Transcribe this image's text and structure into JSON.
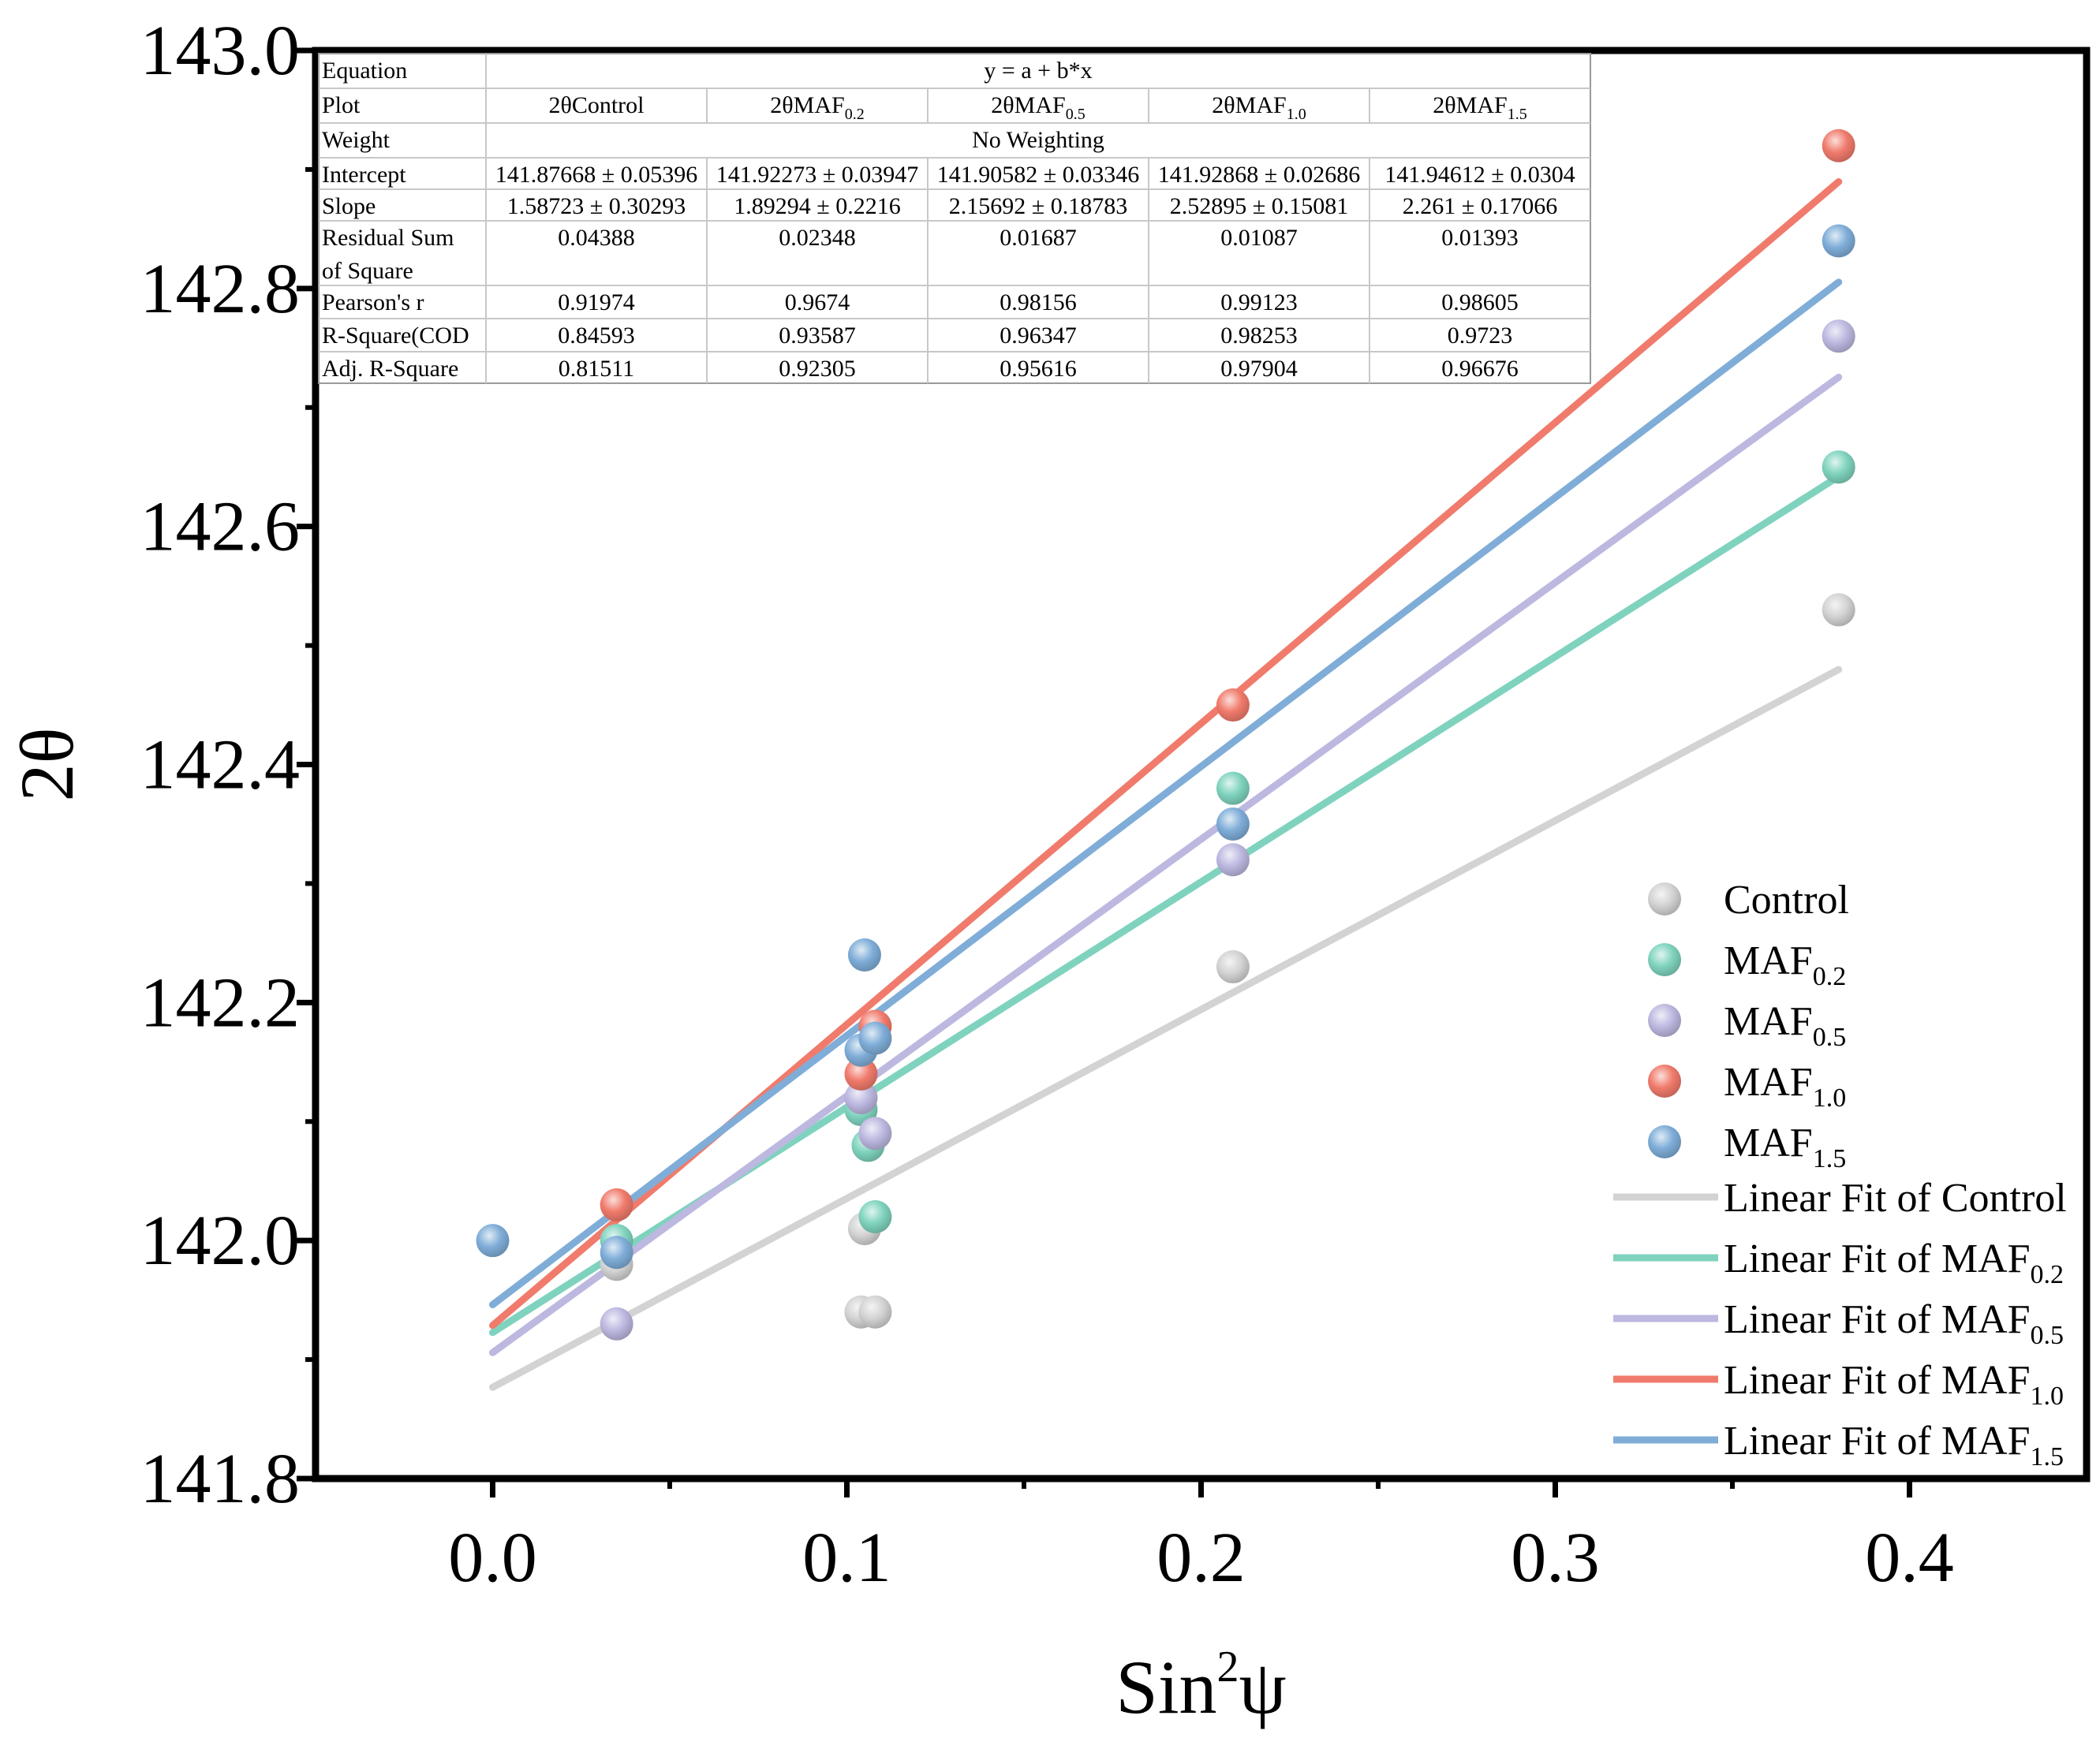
{
  "chart_data": {
    "type": "scatter",
    "xlabel": "Sin",
    "xlabel_sup": "2",
    "xlabel_tail": "ψ",
    "ylabel": "2θ",
    "xlim": [
      -0.05,
      0.45
    ],
    "ylim": [
      141.8,
      143.0
    ],
    "xticks": [
      0.0,
      0.1,
      0.2,
      0.3,
      0.4
    ],
    "xtick_labels": [
      "0.0",
      "0.1",
      "0.2",
      "0.3",
      "0.4"
    ],
    "yticks": [
      141.8,
      142.0,
      142.2,
      142.4,
      142.6,
      142.8,
      143.0
    ],
    "ytick_labels": [
      "141.8",
      "142.0",
      "142.2",
      "142.4",
      "142.6",
      "142.8",
      "143.0"
    ],
    "grid": false,
    "legend_position": "bottom-right",
    "series": [
      {
        "name": "Control",
        "sub": "",
        "fit_label": "Linear Fit of Control",
        "color": "#d3d3d3",
        "intercept": 141.87668,
        "slope": 1.58723,
        "points": [
          [
            0.035,
            141.98
          ],
          [
            0.104,
            141.94
          ],
          [
            0.108,
            141.94
          ],
          [
            0.105,
            142.01
          ],
          [
            0.209,
            142.23
          ],
          [
            0.38,
            142.53
          ]
        ]
      },
      {
        "name": "MAF",
        "sub": "0.2",
        "fit_label": "Linear Fit of MAF",
        "color": "#7fd3be",
        "intercept": 141.92273,
        "slope": 1.89294,
        "points": [
          [
            0.035,
            142.0
          ],
          [
            0.106,
            142.08
          ],
          [
            0.108,
            142.02
          ],
          [
            0.104,
            142.11
          ],
          [
            0.209,
            142.38
          ],
          [
            0.38,
            142.65
          ]
        ]
      },
      {
        "name": "MAF",
        "sub": "0.5",
        "fit_label": "Linear Fit of MAF",
        "color": "#bcb8e0",
        "intercept": 141.90582,
        "slope": 2.15692,
        "points": [
          [
            0.035,
            141.93
          ],
          [
            0.108,
            142.09
          ],
          [
            0.104,
            142.12
          ],
          [
            0.209,
            142.32
          ],
          [
            0.38,
            142.76
          ]
        ]
      },
      {
        "name": "MAF",
        "sub": "1.0",
        "fit_label": "Linear Fit of MAF",
        "color": "#f07b6c",
        "intercept": 141.92868,
        "slope": 2.52895,
        "points": [
          [
            0.035,
            142.03
          ],
          [
            0.104,
            142.14
          ],
          [
            0.108,
            142.18
          ],
          [
            0.209,
            142.45
          ],
          [
            0.38,
            142.92
          ]
        ]
      },
      {
        "name": "MAF",
        "sub": "1.5",
        "fit_label": "Linear Fit of MAF",
        "color": "#7fadd8",
        "intercept": 141.94612,
        "slope": 2.261,
        "points": [
          [
            0.0,
            142.0
          ],
          [
            0.035,
            141.99
          ],
          [
            0.105,
            142.24
          ],
          [
            0.104,
            142.16
          ],
          [
            0.108,
            142.17
          ],
          [
            0.209,
            142.35
          ],
          [
            0.38,
            142.84
          ]
        ]
      }
    ],
    "fit_x_range": [
      0.0,
      0.38
    ],
    "stats_table": {
      "rows": [
        {
          "label": "Equation",
          "span": true,
          "text": "y = a + b*x"
        },
        {
          "label": "Plot",
          "cells": [
            {
              "main": "2θControl",
              "sub": ""
            },
            {
              "main": "2θMAF",
              "sub": "0.2"
            },
            {
              "main": "2θMAF",
              "sub": "0.5"
            },
            {
              "main": "2θMAF",
              "sub": "1.0"
            },
            {
              "main": "2θMAF",
              "sub": "1.5"
            }
          ]
        },
        {
          "label": "Weight",
          "span": true,
          "text": "No Weighting"
        },
        {
          "label": "Intercept",
          "values": [
            "141.87668 ± 0.05396",
            "141.92273 ± 0.03947",
            "141.90582 ± 0.03346",
            "141.92868 ± 0.02686",
            "141.94612 ± 0.0304"
          ]
        },
        {
          "label": "Slope",
          "values": [
            "1.58723 ± 0.30293",
            "1.89294 ± 0.2216",
            "2.15692 ± 0.18783",
            "2.52895 ± 0.15081",
            "2.261 ± 0.17066"
          ]
        },
        {
          "label": "Residual Sum",
          "label2": "of Square",
          "values": [
            "0.04388",
            "0.02348",
            "0.01687",
            "0.01087",
            "0.01393"
          ]
        },
        {
          "label": "Pearson's r",
          "values": [
            "0.91974",
            "0.9674",
            "0.98156",
            "0.99123",
            "0.98605"
          ]
        },
        {
          "label": "R-Square(COD",
          "values": [
            "0.84593",
            "0.93587",
            "0.96347",
            "0.98253",
            "0.9723"
          ]
        },
        {
          "label": "Adj. R-Square",
          "values": [
            "0.81511",
            "0.92305",
            "0.95616",
            "0.97904",
            "0.96676"
          ]
        }
      ]
    }
  }
}
